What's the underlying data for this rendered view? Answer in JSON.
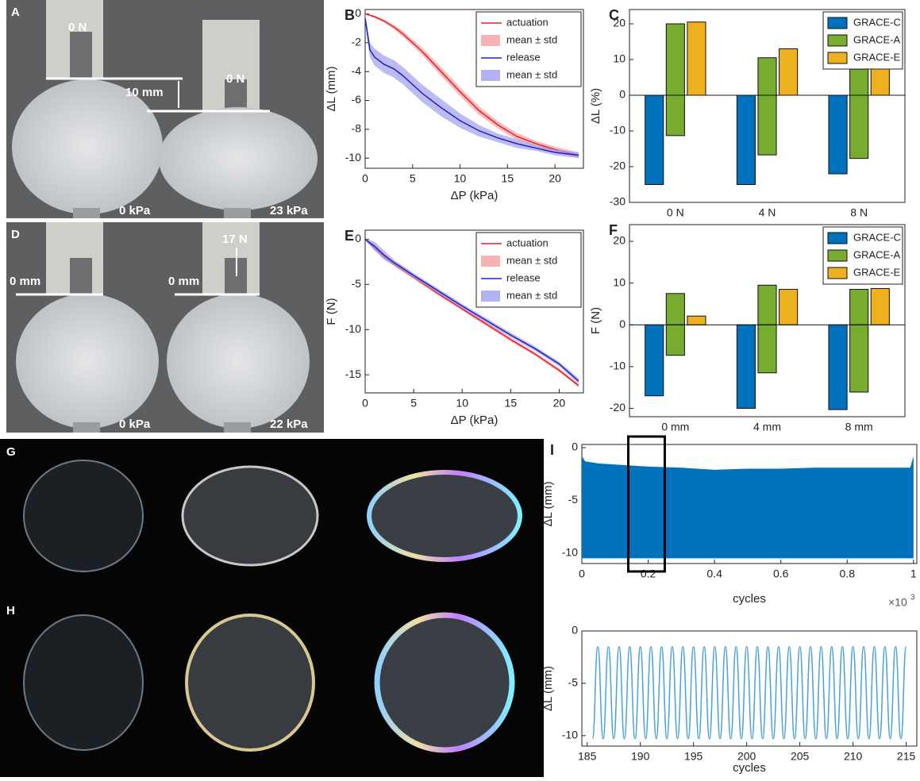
{
  "photos": [
    {
      "label": "A",
      "texts": [
        "0 N",
        "0 N",
        "10 mm",
        "0 kPa",
        "23 kPa"
      ]
    },
    {
      "label": "D",
      "texts": [
        "17 N",
        "0 mm",
        "0 mm",
        "0 kPa",
        "22 kPa"
      ]
    },
    {
      "label": "G"
    },
    {
      "label": "H"
    }
  ],
  "chart_data": [
    {
      "type": "line",
      "panel": "B",
      "xlabel": "ΔP (kPa)",
      "ylabel": "ΔL (mm)",
      "x": [
        0,
        0.5,
        1,
        2,
        3,
        4,
        6,
        8,
        10,
        12,
        14,
        16,
        18,
        20,
        22.5
      ],
      "series": [
        {
          "name": "actuation",
          "color": "#e8202a",
          "values": [
            0,
            -0.1,
            -0.2,
            -0.5,
            -0.9,
            -1.4,
            -2.6,
            -4.0,
            -5.4,
            -6.7,
            -7.7,
            -8.5,
            -9.0,
            -9.4,
            -9.8
          ],
          "band": {
            "name": "mean ± std",
            "color": "#f4a0a0",
            "values": [
              0.05,
              0.05,
              0.1,
              0.1,
              0.15,
              0.2,
              0.25,
              0.3,
              0.3,
              0.3,
              0.25,
              0.25,
              0.2,
              0.2,
              0.2
            ]
          }
        },
        {
          "name": "release",
          "color": "#2020c0",
          "values": [
            -0.3,
            -2.5,
            -3.0,
            -3.5,
            -3.8,
            -4.3,
            -5.5,
            -6.5,
            -7.4,
            -8.1,
            -8.6,
            -9.0,
            -9.3,
            -9.6,
            -9.8
          ],
          "band": {
            "name": "mean ± std",
            "color": "#a0a0f0",
            "values": [
              0.3,
              0.5,
              0.6,
              0.6,
              0.6,
              0.6,
              0.6,
              0.6,
              0.5,
              0.4,
              0.3,
              0.3,
              0.2,
              0.2,
              0.2
            ]
          }
        }
      ],
      "xlim": [
        0,
        23
      ],
      "ylim": [
        -10.7,
        0.3
      ],
      "xticks": [
        0,
        5,
        10,
        15,
        20
      ],
      "yticks": [
        0,
        -2,
        -4,
        -6,
        -8,
        -10
      ],
      "legend": "top-right"
    },
    {
      "type": "bar",
      "panel": "C",
      "ylabel": "ΔL (%)",
      "categories": [
        "0 N",
        "4 N",
        "8 N"
      ],
      "series": [
        {
          "name": "GRACE-C",
          "color": "#0072bd",
          "values": [
            -25,
            -25,
            -22
          ]
        },
        {
          "name": "GRACE-A",
          "color": "#77ac30",
          "values": [
            20,
            10.5,
            7.3
          ],
          "negative_values": [
            -11.3,
            -16.7,
            -17.7
          ]
        },
        {
          "name": "GRACE-E",
          "color": "#edb120",
          "values": [
            20.5,
            13,
            8.2
          ]
        }
      ],
      "ylim": [
        -30,
        24
      ],
      "yticks": [
        -30,
        -20,
        -10,
        0,
        10,
        20
      ],
      "legend": "top-right"
    },
    {
      "type": "line",
      "panel": "E",
      "xlabel": "ΔP (kPa)",
      "ylabel": "F (N)",
      "x": [
        0,
        1,
        2,
        3,
        5,
        7.5,
        10,
        12.5,
        15,
        17.5,
        20,
        22
      ],
      "series": [
        {
          "name": "actuation",
          "color": "#e8202a",
          "values": [
            0,
            -1,
            -2,
            -2.8,
            -4.2,
            -6,
            -7.7,
            -9.4,
            -11.1,
            -12.7,
            -14.5,
            -16.2
          ],
          "band": {
            "name": "mean ± std",
            "color": "#f4a0a0",
            "values": [
              0.1,
              0.2,
              0.2,
              0.2,
              0.2,
              0.2,
              0.2,
              0.2,
              0.2,
              0.2,
              0.2,
              0.2
            ]
          }
        },
        {
          "name": "release",
          "color": "#2020c0",
          "values": [
            0,
            -0.8,
            -1.8,
            -2.6,
            -4.0,
            -5.7,
            -7.4,
            -9.0,
            -10.6,
            -12.1,
            -13.8,
            -15.7
          ],
          "band": {
            "name": "mean ± std",
            "color": "#a0a0f0",
            "values": [
              0.1,
              0.5,
              0.5,
              0.3,
              0.25,
              0.25,
              0.25,
              0.25,
              0.25,
              0.25,
              0.25,
              0.3
            ]
          }
        }
      ],
      "xlim": [
        0,
        22.5
      ],
      "ylim": [
        -17,
        1
      ],
      "xticks": [
        0,
        5,
        10,
        15,
        20
      ],
      "yticks": [
        0,
        -5,
        -10,
        -15
      ],
      "legend": "top-right"
    },
    {
      "type": "bar",
      "panel": "F",
      "ylabel": "F (N)",
      "categories": [
        "0 mm",
        "4 mm",
        "8 mm"
      ],
      "series": [
        {
          "name": "GRACE-C",
          "color": "#0072bd",
          "values": [
            -17,
            -20,
            -20.3
          ]
        },
        {
          "name": "GRACE-A",
          "color": "#77ac30",
          "values": [
            7.5,
            9.5,
            8.5
          ],
          "negative_values": [
            -7.3,
            -11.5,
            -16.1
          ]
        },
        {
          "name": "GRACE-E",
          "color": "#edb120",
          "values": [
            2.1,
            8.5,
            8.7
          ]
        }
      ],
      "ylim": [
        -22,
        24
      ],
      "yticks": [
        -20,
        -10,
        0,
        10,
        20
      ],
      "legend": "top-right"
    },
    {
      "type": "band",
      "panel": "I",
      "xlabel": "cycles",
      "ylabel": "ΔL (mm)",
      "x_multiplier": "×10",
      "x_multiplier_exp": "3",
      "x": [
        0,
        0.01,
        0.05,
        0.1,
        0.2,
        0.3,
        0.4,
        0.5,
        0.6,
        0.7,
        0.8,
        0.9,
        0.99,
        1.0
      ],
      "series": [
        {
          "color": "#0072bd",
          "values": [
            -0.8,
            -1.3,
            -1.5,
            -1.6,
            -1.8,
            -1.9,
            -2.1,
            -2.0,
            -2.0,
            -1.9,
            -1.9,
            -1.9,
            -1.9,
            -0.8
          ],
          "lower": [
            -10.5,
            -10.5,
            -10.5,
            -10.5,
            -10.5,
            -10.5,
            -10.5,
            -10.5,
            -10.5,
            -10.5,
            -10.5,
            -10.5,
            -10.5,
            -10.5
          ]
        }
      ],
      "highlight_x": [
        0.14,
        0.25
      ],
      "xlim": [
        0,
        1.01
      ],
      "ylim": [
        -11,
        0.3
      ],
      "xticks": [
        0,
        0.2,
        0.4,
        0.6,
        0.8,
        1
      ],
      "yticks": [
        0,
        -5,
        -10
      ]
    },
    {
      "type": "line",
      "xlabel": "cycles",
      "ylabel": "ΔL (mm)",
      "x": [
        185.5,
        186,
        186.5,
        187,
        187.5,
        188,
        188.5,
        189,
        189.5,
        190,
        190.5,
        191,
        191.5,
        192,
        192.5,
        193,
        193.5,
        194,
        194.5,
        195,
        195.5,
        196,
        196.5,
        197,
        197.5,
        198,
        198.5,
        199,
        199.5,
        200,
        200.5,
        201,
        201.5,
        202,
        202.5,
        203,
        203.5,
        204,
        204.5,
        205,
        205.5,
        206,
        206.5,
        207,
        207.5,
        208,
        208.5,
        209,
        209.5,
        210,
        210.5,
        211,
        211.5,
        212,
        212.5,
        213,
        213.5,
        214,
        214.5,
        215
      ],
      "series": [
        {
          "color": "#4aa0d8",
          "values": [
            -10.3,
            -1.5,
            -10.3,
            -1.5,
            -10.3,
            -1.5,
            -10.3,
            -1.5,
            -10.3,
            -1.5,
            -10.3,
            -1.5,
            -10.3,
            -1.5,
            -10.3,
            -1.5,
            -10.3,
            -1.5,
            -10.3,
            -1.5,
            -10.3,
            -1.5,
            -10.3,
            -1.5,
            -10.3,
            -1.5,
            -10.3,
            -1.5,
            -10.3,
            -1.5,
            -10.3,
            -1.5,
            -10.3,
            -1.5,
            -10.3,
            -1.5,
            -10.3,
            -1.5,
            -10.3,
            -1.5,
            -10.3,
            -1.5,
            -10.3,
            -1.5,
            -10.3,
            -1.5,
            -10.3,
            -1.5,
            -10.3,
            -1.5,
            -10.3,
            -1.5,
            -10.3,
            -1.5,
            -10.3,
            -1.5,
            -10.3,
            -1.5,
            -10.3,
            -1.5
          ]
        }
      ],
      "xlim": [
        184.5,
        216
      ],
      "ylim": [
        -11,
        0
      ],
      "xticks": [
        185,
        190,
        195,
        200,
        205,
        210,
        215
      ],
      "yticks": [
        0,
        -5,
        -10
      ]
    }
  ]
}
